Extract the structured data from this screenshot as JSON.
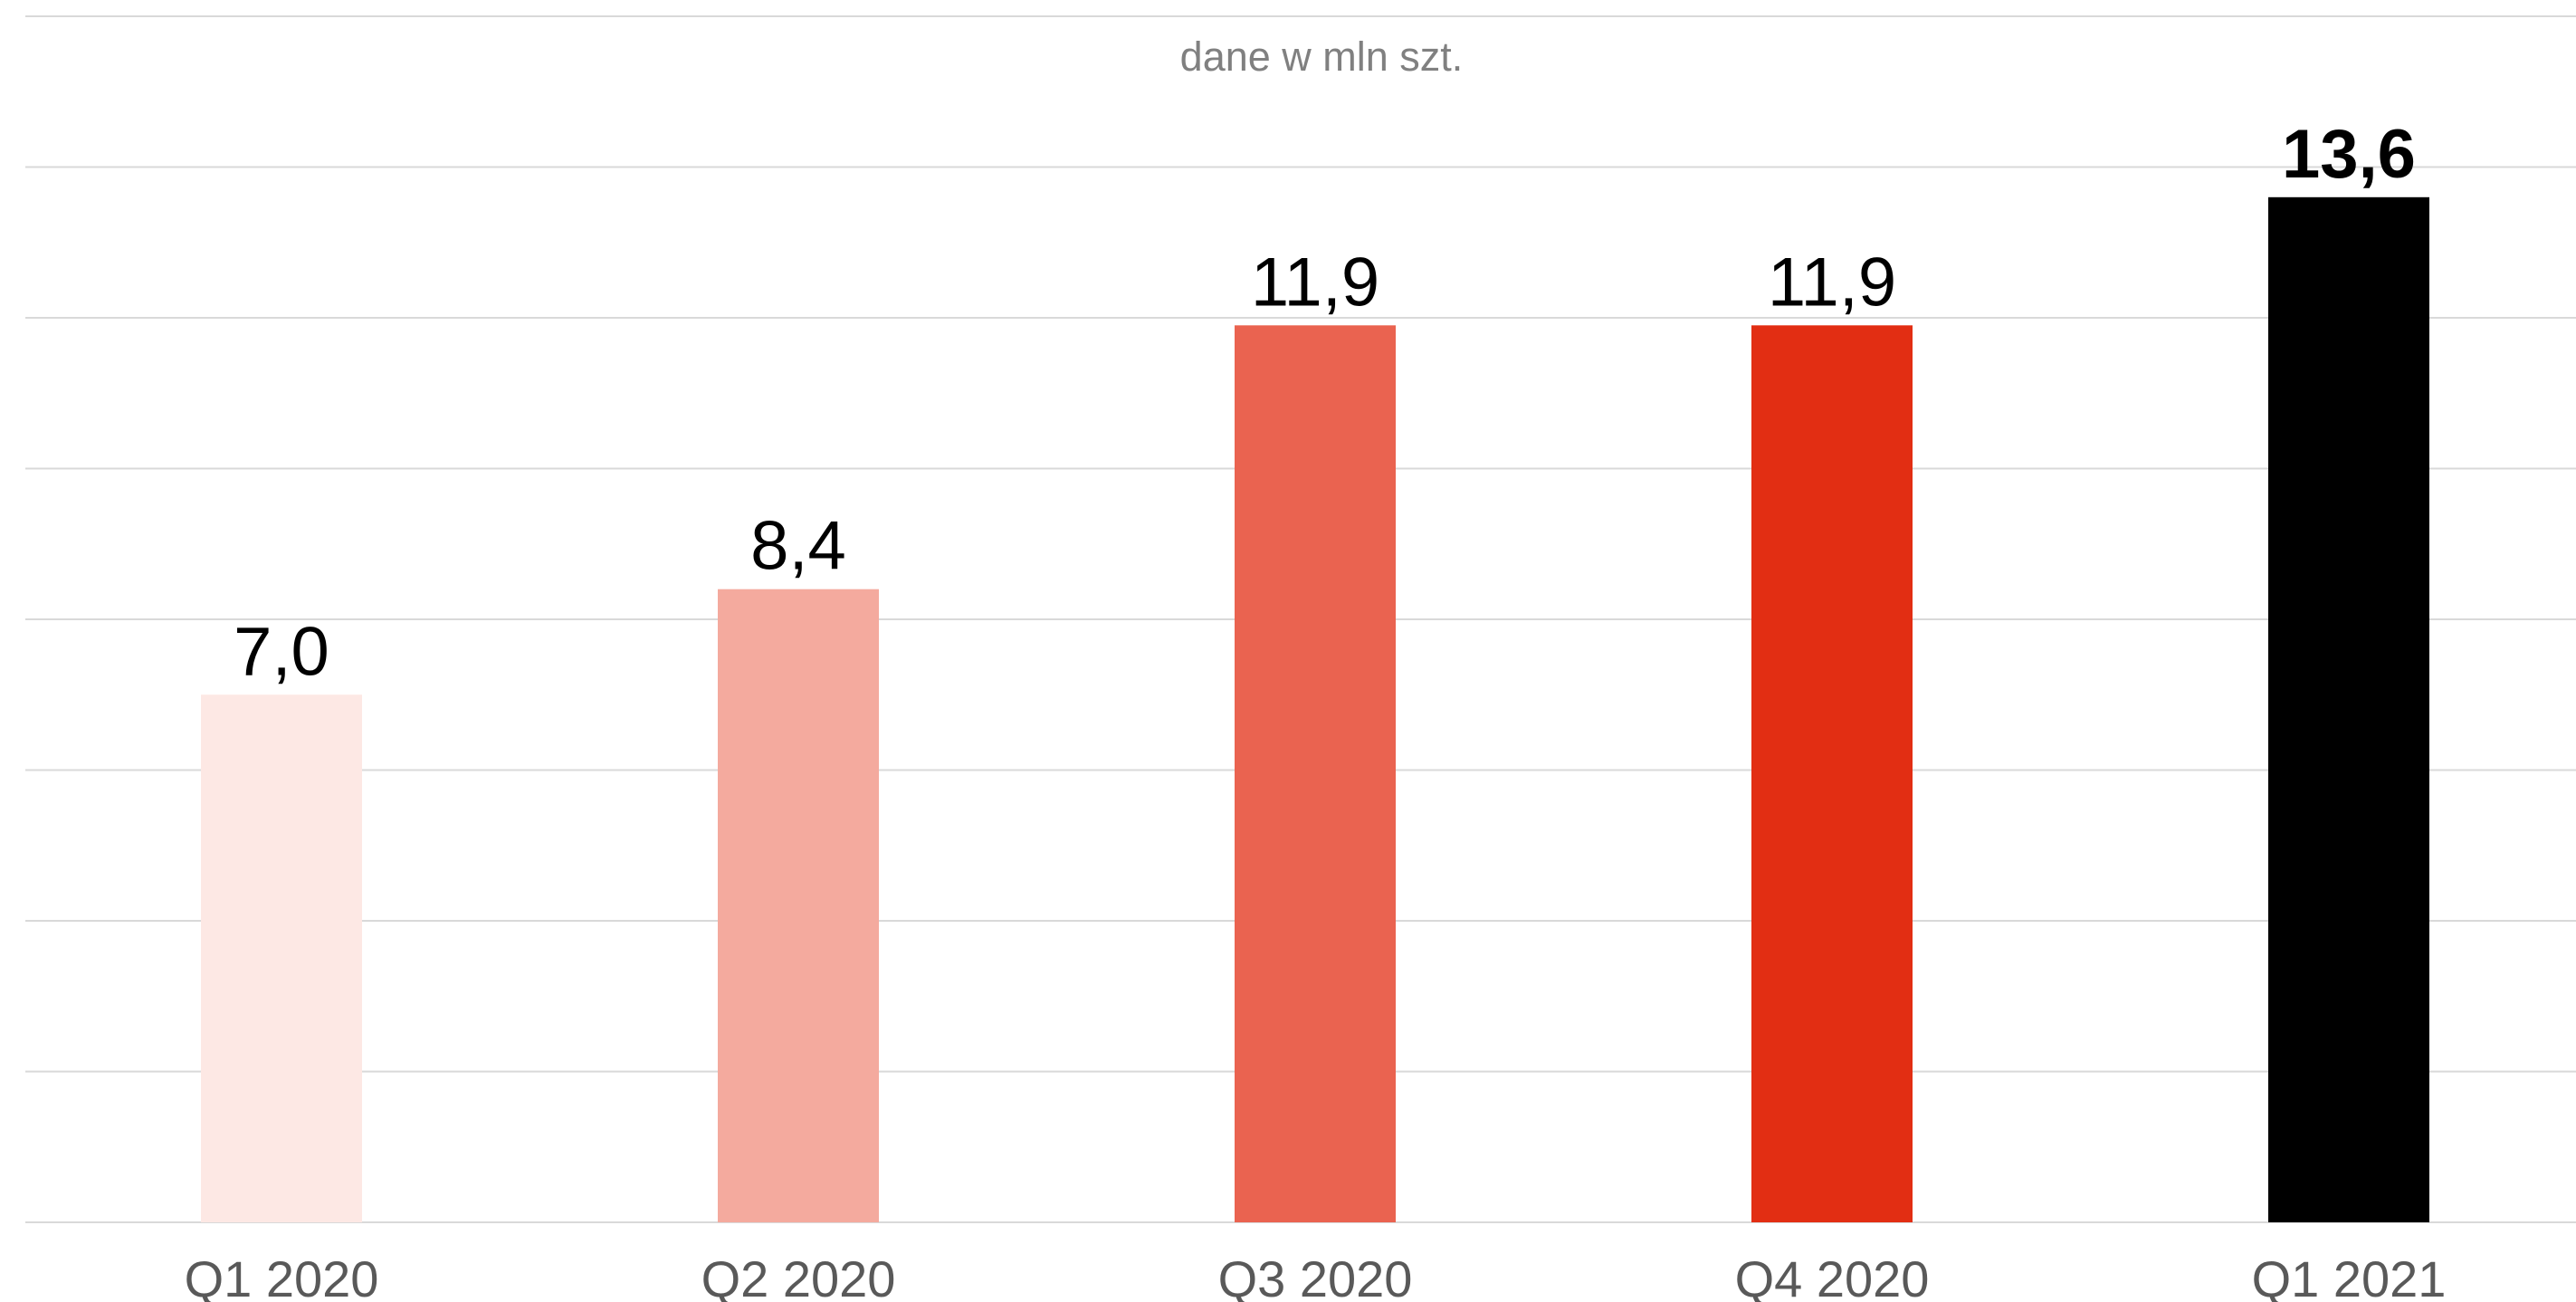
{
  "chart_data": {
    "type": "bar",
    "subtitle": "dane w mln szt.",
    "categories": [
      "Q1 2020",
      "Q2 2020",
      "Q3 2020",
      "Q4 2020",
      "Q1 2021"
    ],
    "values": [
      7.0,
      8.4,
      11.9,
      11.9,
      13.6
    ],
    "value_labels": [
      "7,0",
      "8,4",
      "11,9",
      "11,9",
      "13,6"
    ],
    "bar_colors": [
      "#fde8e4",
      "#f4aa9e",
      "#ea6350",
      "#e22e13",
      "#000000"
    ],
    "emphasized_index": 4,
    "ylim": [
      0,
      16
    ],
    "y_gridline_step": 2,
    "grid": true,
    "y_tick_labels_shown": false,
    "legend": "none"
  }
}
